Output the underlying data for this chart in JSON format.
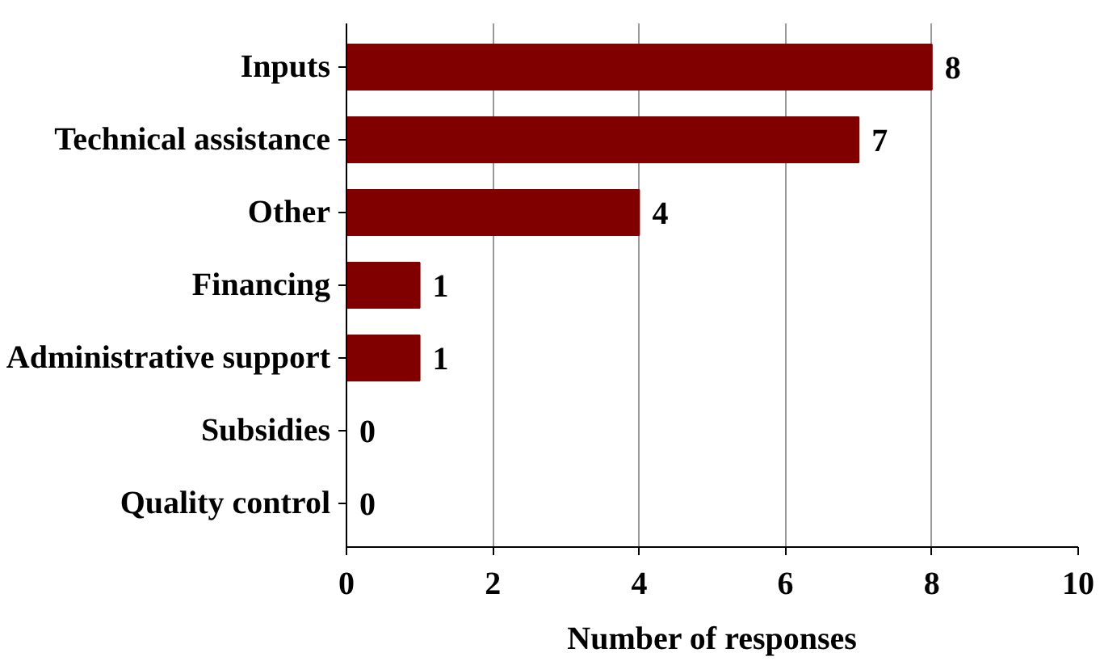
{
  "chart_data": {
    "type": "bar",
    "orientation": "horizontal",
    "xlabel": "Number of responses",
    "categories": [
      "Inputs",
      "Technical assistance",
      "Other",
      "Financing",
      "Administrative support",
      "Subsidies",
      "Quality control"
    ],
    "values": [
      8,
      7,
      4,
      1,
      1,
      0,
      0
    ],
    "color": "#800000",
    "xlim": [
      0,
      10
    ],
    "xticks": [
      0,
      2,
      4,
      6,
      8,
      10
    ],
    "grid": "x",
    "data_labels": true
  }
}
